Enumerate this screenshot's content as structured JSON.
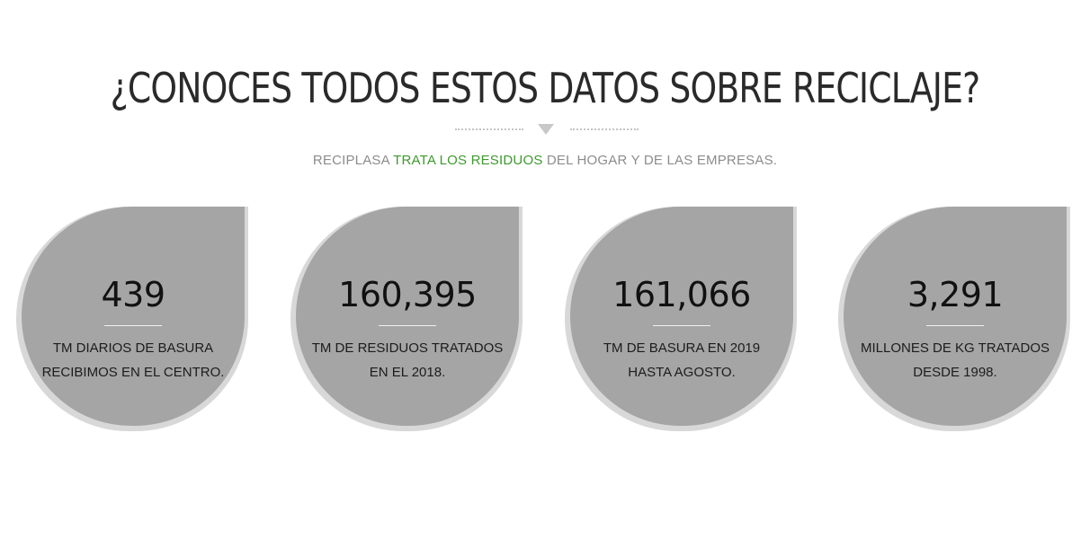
{
  "header": {
    "title": "¿CONOCES TODOS ESTOS DATOS SOBRE RECICLAJE?",
    "divider_icon": "chevron-down-icon"
  },
  "subtitle": {
    "prefix": "RECIPLASA ",
    "highlight": "TRATA LOS RESIDUOS",
    "suffix": " DEL HOGAR Y DE LAS EMPRESAS."
  },
  "colors": {
    "highlight": "#3d9a2e",
    "blob": "#a6a5a6",
    "blob_shadow": "#d8d8d8",
    "title": "#2a2a2a"
  },
  "stats": [
    {
      "value": "439",
      "label_line1": "TM DIARIOS DE BASURA",
      "label_line2": "RECIBIMOS EN EL CENTRO."
    },
    {
      "value": "160,395",
      "label_line1": "TM DE RESIDUOS TRATADOS",
      "label_line2": "EN EL 2018."
    },
    {
      "value": "161,066",
      "label_line1": "TM DE BASURA EN 2019",
      "label_line2": "HASTA AGOSTO."
    },
    {
      "value": "3,291",
      "label_line1": "MILLONES DE KG TRATADOS",
      "label_line2": "DESDE 1998."
    }
  ]
}
